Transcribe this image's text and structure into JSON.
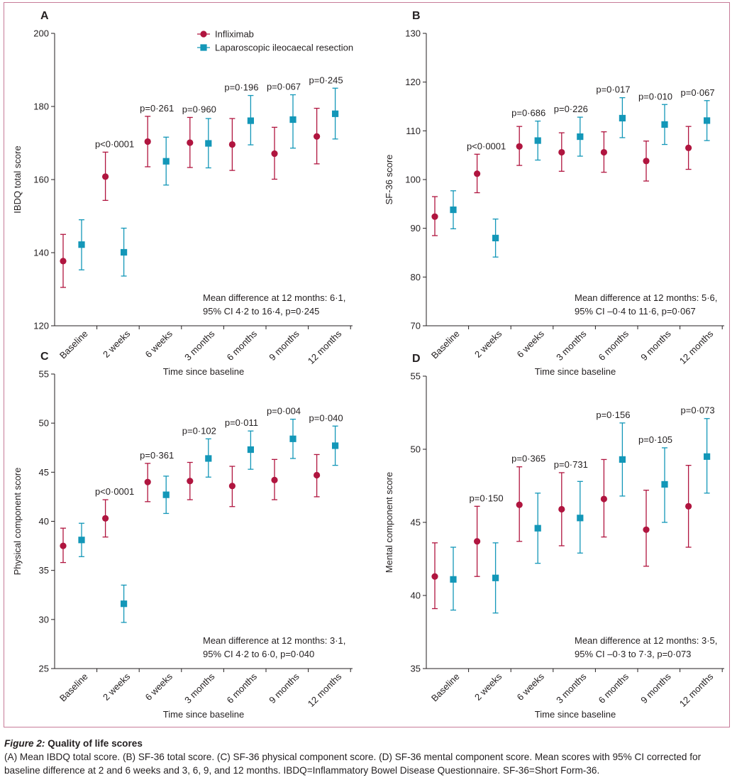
{
  "colors": {
    "infliximab": "#b0153f",
    "resection": "#1397b8",
    "axis": "#231f20",
    "frame": "#c77b98"
  },
  "legend": {
    "items": [
      {
        "label": "Infliximab",
        "series": 0
      },
      {
        "label": "Laparoscopic ileocaecal resection",
        "series": 1
      }
    ]
  },
  "shared": {
    "xlabel": "Time since baseline"
  },
  "chart_data": [
    {
      "panel": "A",
      "type": "scatter-errorbar",
      "categories": [
        "Baseline",
        "2 weeks",
        "6 weeks",
        "3 months",
        "6 months",
        "9 months",
        "12 months"
      ],
      "ylabel": "IBDQ total score",
      "xlabel": "Time since baseline",
      "ylim": [
        120,
        200
      ],
      "yticks": [
        "120",
        "140",
        "160",
        "180",
        "200"
      ],
      "series": [
        {
          "name": "Infliximab",
          "values": [
            137.7,
            160.8,
            170.4,
            170.1,
            169.6,
            167.1,
            171.8
          ],
          "lower": [
            130.5,
            154.3,
            163.5,
            163.3,
            162.5,
            160.1,
            164.3
          ],
          "upper": [
            145.0,
            167.5,
            177.3,
            177.0,
            176.7,
            174.3,
            179.5
          ]
        },
        {
          "name": "Laparoscopic ileocaecal resection",
          "values": [
            142.2,
            140.1,
            165.0,
            169.9,
            176.1,
            176.4,
            178.0
          ],
          "lower": [
            135.3,
            133.6,
            158.5,
            163.2,
            169.5,
            168.6,
            171.1
          ],
          "upper": [
            149.0,
            146.7,
            171.6,
            176.7,
            183.0,
            183.2,
            185.0
          ]
        }
      ],
      "pvalues": [
        "",
        "p<0·0001",
        "p=0·261",
        "p=0·960",
        "p=0·196",
        "p=0·067",
        "p=0·245"
      ],
      "annotation": [
        "Mean difference at 12 months: 6·1,",
        "95% CI  4·2 to 16·4, p=0·245"
      ]
    },
    {
      "panel": "B",
      "type": "scatter-errorbar",
      "categories": [
        "Baseline",
        "2 weeks",
        "6 weeks",
        "3 months",
        "6 months",
        "9 months",
        "12 months"
      ],
      "ylabel": "SF-36 score",
      "xlabel": "Time since baseline",
      "ylim": [
        70,
        130
      ],
      "yticks": [
        "70",
        "80",
        "90",
        "100",
        "110",
        "120",
        "130"
      ],
      "series": [
        {
          "name": "Infliximab",
          "values": [
            92.4,
            101.2,
            106.8,
            105.6,
            105.6,
            103.8,
            106.5
          ],
          "lower": [
            88.5,
            97.3,
            102.9,
            101.7,
            101.5,
            99.7,
            102.1
          ],
          "upper": [
            96.5,
            105.2,
            110.9,
            109.6,
            109.8,
            107.9,
            110.9
          ]
        },
        {
          "name": "Laparoscopic ileocaecal resection",
          "values": [
            93.8,
            88.0,
            108.0,
            108.8,
            112.6,
            111.3,
            112.1
          ],
          "lower": [
            89.9,
            84.1,
            104.0,
            104.8,
            108.6,
            107.2,
            108.0
          ],
          "upper": [
            97.7,
            91.9,
            112.0,
            112.8,
            116.8,
            115.4,
            116.2
          ]
        }
      ],
      "pvalues": [
        "",
        "p<0·0001",
        "p=0·686",
        "p=0·226",
        "p=0·017",
        "p=0·010",
        "p=0·067"
      ],
      "annotation": [
        "Mean difference at 12 months: 5·6,",
        "95% CI –0·4 to 11·6, p=0·067"
      ]
    },
    {
      "panel": "C",
      "type": "scatter-errorbar",
      "categories": [
        "Baseline",
        "2 weeks",
        "6 weeks",
        "3 months",
        "6 months",
        "9 months",
        "12 months"
      ],
      "ylabel": "Physical component score",
      "xlabel": "Time since baseline",
      "ylim": [
        25,
        55
      ],
      "yticks": [
        "25",
        "30",
        "35",
        "40",
        "45",
        "50",
        "55"
      ],
      "series": [
        {
          "name": "Infliximab",
          "values": [
            37.5,
            40.3,
            44.0,
            44.1,
            43.6,
            44.2,
            44.7
          ],
          "lower": [
            35.8,
            38.4,
            42.0,
            42.2,
            41.5,
            42.2,
            42.5
          ],
          "upper": [
            39.3,
            42.2,
            45.9,
            46.0,
            45.6,
            46.3,
            46.8
          ]
        },
        {
          "name": "Laparoscopic ileocaecal resection",
          "values": [
            38.1,
            31.6,
            42.7,
            46.4,
            47.3,
            48.4,
            47.7
          ],
          "lower": [
            36.4,
            29.7,
            40.8,
            44.5,
            45.3,
            46.4,
            45.7
          ],
          "upper": [
            39.8,
            33.5,
            44.6,
            48.4,
            49.2,
            50.4,
            49.7
          ]
        }
      ],
      "pvalues": [
        "",
        "p<0·0001",
        "p=0·361",
        "p=0·102",
        "p=0·011",
        "p=0·004",
        "p=0·040"
      ],
      "annotation": [
        "Mean difference at 12 months: 3·1,",
        "95% CI 4·2 to 6·0, p=0·040"
      ]
    },
    {
      "panel": "D",
      "type": "scatter-errorbar",
      "categories": [
        "Baseline",
        "2 weeks",
        "6 weeks",
        "3 months",
        "6 months",
        "9 months",
        "12 months"
      ],
      "ylabel": "Mental component score",
      "xlabel": "Time since baseline",
      "ylim": [
        35,
        55
      ],
      "yticks": [
        "35",
        "40",
        "45",
        "50",
        "55"
      ],
      "series": [
        {
          "name": "Infliximab",
          "values": [
            41.3,
            43.7,
            46.2,
            45.9,
            46.6,
            44.5,
            46.1
          ],
          "lower": [
            39.1,
            41.3,
            43.7,
            43.4,
            44.0,
            42.0,
            43.3
          ],
          "upper": [
            43.6,
            46.1,
            48.8,
            48.4,
            49.3,
            47.2,
            48.9
          ]
        },
        {
          "name": "Laparoscopic ileocaecal resection",
          "values": [
            41.1,
            41.2,
            44.6,
            45.3,
            49.3,
            47.6,
            49.5
          ],
          "lower": [
            39.0,
            38.8,
            42.2,
            42.9,
            46.8,
            45.0,
            47.0
          ],
          "upper": [
            43.3,
            43.6,
            47.0,
            47.8,
            51.8,
            50.1,
            52.1
          ]
        }
      ],
      "pvalues": [
        "",
        "p=0·150",
        "p=0·365",
        "p=0·731",
        "p=0·156",
        "p=0·105",
        "p=0·073"
      ],
      "annotation": [
        "Mean difference at 12 months: 3·5,",
        "95% CI –0·3 to 7·3, p=0·073"
      ]
    }
  ],
  "caption": {
    "figure_label": "Figure 2:",
    "title": "Quality of life scores",
    "text": "(A) Mean IBDQ total score. (B) SF-36 total score. (C) SF-36 physical component score. (D) SF-36 mental component score. Mean scores with 95% CI corrected for baseline difference at 2 and 6 weeks and 3, 6, 9, and 12 months. IBDQ=Inflammatory Bowel Disease Questionnaire. SF-36=Short Form-36."
  }
}
